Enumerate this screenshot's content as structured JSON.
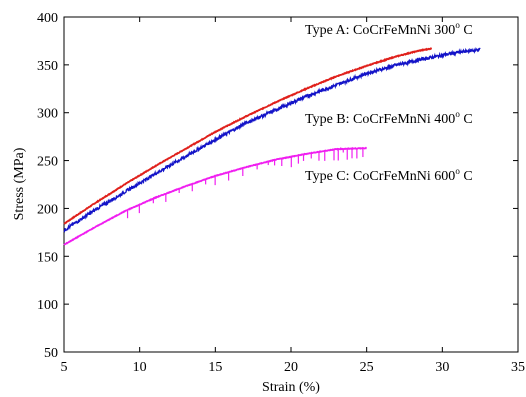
{
  "chart_data": {
    "type": "line",
    "xlabel": "Strain (%)",
    "ylabel": "Stress (MPa)",
    "xlim": [
      5,
      35
    ],
    "ylim": [
      50,
      400
    ],
    "xticks": [
      5,
      10,
      15,
      20,
      25,
      30,
      35
    ],
    "yticks": [
      50,
      100,
      150,
      200,
      250,
      300,
      350,
      400
    ],
    "grid": false,
    "annotations": [
      {
        "text": "Type A: CoCrFeMnNi 300",
        "sup": "o",
        "tail": " C"
      },
      {
        "text": "Type B: CoCrFeMnNi 400",
        "sup": "o",
        "tail": " C"
      },
      {
        "text": "Type C: CoCrFeMnNi 600",
        "sup": "o",
        "tail": " C"
      }
    ],
    "series": [
      {
        "color": "#e0201b",
        "x": [
          5,
          7,
          9,
          11,
          13,
          15,
          17,
          19,
          21,
          23,
          25,
          27,
          28.5,
          29.3
        ],
        "y": [
          184,
          205,
          225,
          244,
          262,
          280,
          296,
          311,
          325,
          338,
          349,
          359,
          365,
          367
        ]
      },
      {
        "color": "#1414c8",
        "x": [
          5,
          7,
          9,
          11,
          13,
          15,
          17,
          19,
          21,
          23,
          25,
          27,
          29,
          31,
          32.5
        ],
        "y": [
          177,
          198,
          217,
          236,
          254,
          272,
          289,
          303,
          317,
          329,
          341,
          350,
          357,
          363,
          366
        ]
      },
      {
        "color": "#f01ef0",
        "x": [
          5,
          7,
          9,
          11,
          13,
          15,
          17,
          19,
          21,
          23,
          25
        ],
        "y": [
          162,
          180,
          197,
          211,
          223,
          234,
          243,
          251,
          257,
          262,
          263
        ]
      }
    ]
  }
}
